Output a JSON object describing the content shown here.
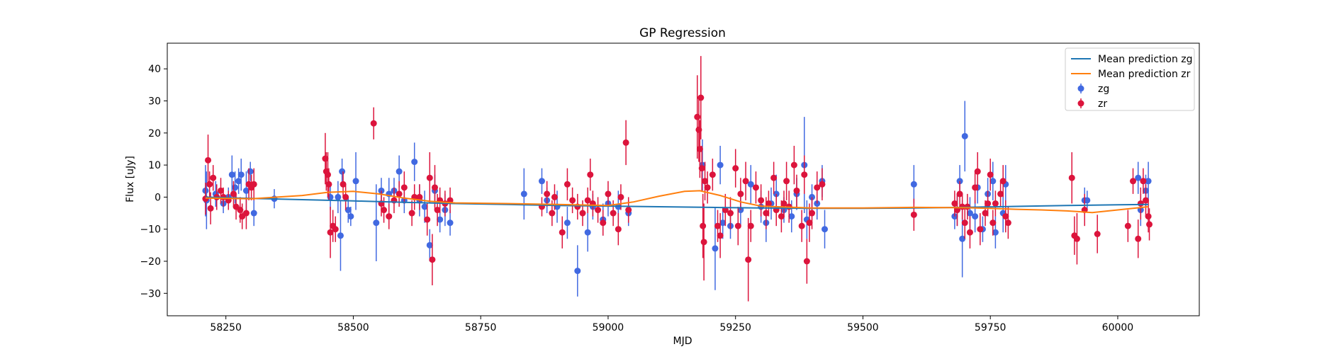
{
  "chart_data": {
    "type": "scatter",
    "title": "GP Regression",
    "xlabel": "MJD",
    "ylabel": "Flux [uJy]",
    "xlim": [
      58135,
      60160
    ],
    "ylim": [
      -37,
      48
    ],
    "xticks": [
      58250,
      58500,
      58750,
      59000,
      59250,
      59500,
      59750,
      60000
    ],
    "yticks": [
      -30,
      -20,
      -10,
      0,
      10,
      20,
      30,
      40
    ],
    "grid": false,
    "legend_position": "top-right",
    "colors": {
      "zg": "#4169e1",
      "zr": "#dc143c",
      "mean_zg": "#1f77b4",
      "mean_zr": "#ff7f0e"
    },
    "lines": [
      {
        "name": "Mean prediction zg",
        "x": [
          58210,
          58300,
          58400,
          58500,
          58600,
          58700,
          58800,
          58900,
          59000,
          59100,
          59200,
          59300,
          59400,
          59500,
          59600,
          59700,
          59800,
          59900,
          60000,
          60060
        ],
        "y": [
          0.0,
          -0.4,
          -0.8,
          -1.2,
          -1.6,
          -2.0,
          -2.3,
          -2.6,
          -2.8,
          -3.0,
          -3.2,
          -3.4,
          -3.5,
          -3.5,
          -3.4,
          -3.2,
          -2.9,
          -2.6,
          -2.4,
          -2.3
        ]
      },
      {
        "name": "Mean prediction zr",
        "x": [
          58210,
          58300,
          58400,
          58450,
          58500,
          58550,
          58600,
          58650,
          58700,
          58800,
          58900,
          59000,
          59050,
          59100,
          59150,
          59180,
          59220,
          59260,
          59300,
          59400,
          59500,
          59600,
          59700,
          59750,
          59800,
          59850,
          59900,
          59950,
          60000,
          60060
        ],
        "y": [
          -0.3,
          -0.5,
          0.5,
          1.5,
          1.8,
          1.0,
          -0.3,
          -1.3,
          -1.8,
          -2.0,
          -2.3,
          -2.6,
          -1.5,
          0.3,
          1.8,
          2.0,
          0.5,
          -1.5,
          -2.8,
          -3.4,
          -3.4,
          -3.2,
          -3.3,
          -3.5,
          -3.8,
          -4.0,
          -4.3,
          -4.8,
          -4.0,
          -3.0
        ]
      }
    ],
    "series": [
      {
        "name": "zg",
        "points": [
          [
            58210,
            2,
            8
          ],
          [
            58212,
            -1,
            9
          ],
          [
            58230,
            1,
            4
          ],
          [
            58245,
            -2,
            3
          ],
          [
            58255,
            0,
            3
          ],
          [
            58262,
            7,
            6
          ],
          [
            58268,
            3,
            5
          ],
          [
            58275,
            5,
            4
          ],
          [
            58280,
            7,
            5
          ],
          [
            58290,
            2,
            6
          ],
          [
            58298,
            8,
            3
          ],
          [
            58305,
            -5,
            4
          ],
          [
            58345,
            -0.5,
            3
          ],
          [
            58455,
            0,
            4
          ],
          [
            58470,
            0,
            5
          ],
          [
            58475,
            -12,
            11
          ],
          [
            58478,
            8,
            4
          ],
          [
            58490,
            -4,
            4
          ],
          [
            58495,
            -6,
            3
          ],
          [
            58505,
            5,
            9
          ],
          [
            58545,
            -8,
            12
          ],
          [
            58555,
            2,
            4
          ],
          [
            58570,
            1,
            5
          ],
          [
            58580,
            2,
            4
          ],
          [
            58590,
            8,
            5
          ],
          [
            58600,
            -1,
            4
          ],
          [
            58620,
            11,
            6
          ],
          [
            58630,
            -1,
            5
          ],
          [
            58640,
            -3,
            5
          ],
          [
            58650,
            -15,
            5
          ],
          [
            58660,
            2,
            5
          ],
          [
            58670,
            -7,
            4
          ],
          [
            58680,
            -4,
            5
          ],
          [
            58690,
            -8,
            4
          ],
          [
            58835,
            1,
            8
          ],
          [
            58870,
            5,
            4
          ],
          [
            58880,
            -1,
            4
          ],
          [
            58900,
            -3,
            5
          ],
          [
            58920,
            -8,
            5
          ],
          [
            58940,
            -23,
            8
          ],
          [
            58960,
            -11,
            6
          ],
          [
            58970,
            -3,
            4
          ],
          [
            58990,
            -7,
            5
          ],
          [
            59000,
            -2,
            4
          ],
          [
            59020,
            -3,
            5
          ],
          [
            59040,
            -5,
            4
          ],
          [
            59185,
            10,
            8
          ],
          [
            59210,
            -16,
            13
          ],
          [
            59220,
            10,
            6
          ],
          [
            59225,
            -8,
            5
          ],
          [
            59240,
            -9,
            4
          ],
          [
            59260,
            -4,
            5
          ],
          [
            59280,
            4,
            6
          ],
          [
            59300,
            -3,
            5
          ],
          [
            59310,
            -8,
            6
          ],
          [
            59320,
            -2,
            5
          ],
          [
            59330,
            1,
            6
          ],
          [
            59345,
            -4,
            4
          ],
          [
            59360,
            -6,
            5
          ],
          [
            59370,
            1,
            5
          ],
          [
            59385,
            10,
            15
          ],
          [
            59390,
            -7,
            6
          ],
          [
            59400,
            0,
            4
          ],
          [
            59410,
            -2,
            5
          ],
          [
            59420,
            5,
            5
          ],
          [
            59425,
            -10,
            6
          ],
          [
            59600,
            4,
            6
          ],
          [
            59680,
            -6,
            4
          ],
          [
            59685,
            -4,
            5
          ],
          [
            59690,
            5,
            5
          ],
          [
            59695,
            -13,
            12
          ],
          [
            59700,
            19,
            11
          ],
          [
            59710,
            -5,
            5
          ],
          [
            59720,
            -6,
            5
          ],
          [
            59725,
            3,
            5
          ],
          [
            59735,
            -10,
            4
          ],
          [
            59745,
            1,
            5
          ],
          [
            59755,
            5,
            6
          ],
          [
            59760,
            -11,
            5
          ],
          [
            59775,
            -5,
            6
          ],
          [
            59780,
            4,
            6
          ],
          [
            59935,
            -1,
            4
          ],
          [
            59940,
            -1,
            3
          ],
          [
            60040,
            6,
            5
          ],
          [
            60045,
            -4,
            5
          ],
          [
            60055,
            2,
            5
          ],
          [
            60060,
            5,
            6
          ]
        ]
      },
      {
        "name": "zr",
        "points": [
          [
            58210,
            -0.5,
            5
          ],
          [
            58215,
            11.5,
            8
          ],
          [
            58218,
            4,
            4
          ],
          [
            58220,
            -3.5,
            5
          ],
          [
            58225,
            6,
            4
          ],
          [
            58232,
            0,
            4
          ],
          [
            58240,
            2,
            4
          ],
          [
            58245,
            0,
            3
          ],
          [
            58255,
            -1,
            3
          ],
          [
            58265,
            1,
            4
          ],
          [
            58270,
            -3,
            4
          ],
          [
            58278,
            -4,
            4
          ],
          [
            58282,
            -6,
            4
          ],
          [
            58290,
            -5,
            5
          ],
          [
            58295,
            4,
            5
          ],
          [
            58300,
            3,
            4
          ],
          [
            58305,
            4,
            5
          ],
          [
            58445,
            12,
            8
          ],
          [
            58447,
            8,
            6
          ],
          [
            58450,
            7,
            7
          ],
          [
            58452,
            4,
            5
          ],
          [
            58455,
            -11,
            8
          ],
          [
            58460,
            -9,
            5
          ],
          [
            58465,
            -10,
            4
          ],
          [
            58480,
            4,
            4
          ],
          [
            58485,
            0,
            4
          ],
          [
            58540,
            23,
            5
          ],
          [
            58555,
            -2,
            4
          ],
          [
            58560,
            -4,
            4
          ],
          [
            58570,
            -6,
            4
          ],
          [
            58580,
            -1,
            4
          ],
          [
            58590,
            1,
            4
          ],
          [
            58600,
            3,
            5
          ],
          [
            58615,
            -5,
            4
          ],
          [
            58620,
            0,
            4
          ],
          [
            58630,
            0,
            4
          ],
          [
            58645,
            -7,
            5
          ],
          [
            58650,
            6,
            8
          ],
          [
            58655,
            -19.5,
            8
          ],
          [
            58660,
            3,
            7
          ],
          [
            58665,
            -4,
            5
          ],
          [
            58670,
            -1,
            4
          ],
          [
            58680,
            -2,
            4
          ],
          [
            58690,
            -1,
            4
          ],
          [
            58870,
            -3,
            3
          ],
          [
            58880,
            1,
            4
          ],
          [
            58890,
            -5,
            4
          ],
          [
            58895,
            0,
            4
          ],
          [
            58910,
            -11,
            5
          ],
          [
            58920,
            4,
            5
          ],
          [
            58930,
            -1,
            4
          ],
          [
            58940,
            -3,
            4
          ],
          [
            58950,
            -5,
            4
          ],
          [
            58960,
            -1,
            4
          ],
          [
            58965,
            7,
            5
          ],
          [
            58970,
            -2,
            4
          ],
          [
            58980,
            -4,
            4
          ],
          [
            58990,
            -8,
            4
          ],
          [
            59000,
            1,
            4
          ],
          [
            59010,
            -5,
            4
          ],
          [
            59020,
            -10,
            5
          ],
          [
            59025,
            0,
            4
          ],
          [
            59035,
            17,
            7
          ],
          [
            59040,
            -4,
            4
          ],
          [
            59175,
            25,
            13
          ],
          [
            59178,
            21,
            10
          ],
          [
            59180,
            15,
            9
          ],
          [
            59182,
            31,
            13
          ],
          [
            59184,
            9,
            7
          ],
          [
            59186,
            -9,
            10
          ],
          [
            59188,
            -14,
            12
          ],
          [
            59190,
            5,
            6
          ],
          [
            59195,
            3,
            5
          ],
          [
            59205,
            7,
            5
          ],
          [
            59215,
            -9,
            5
          ],
          [
            59220,
            -12,
            7
          ],
          [
            59230,
            -4,
            5
          ],
          [
            59240,
            -5,
            5
          ],
          [
            59250,
            9,
            6
          ],
          [
            59255,
            -9,
            6
          ],
          [
            59260,
            1,
            5
          ],
          [
            59270,
            5,
            6
          ],
          [
            59275,
            -19.5,
            13
          ],
          [
            59280,
            -9,
            5
          ],
          [
            59290,
            3,
            5
          ],
          [
            59300,
            -1,
            5
          ],
          [
            59310,
            -5,
            5
          ],
          [
            59315,
            -2,
            4
          ],
          [
            59325,
            6,
            5
          ],
          [
            59330,
            -4,
            5
          ],
          [
            59340,
            -6,
            5
          ],
          [
            59345,
            -2,
            4
          ],
          [
            59350,
            5,
            6
          ],
          [
            59355,
            -3,
            5
          ],
          [
            59365,
            10,
            6
          ],
          [
            59370,
            2,
            5
          ],
          [
            59380,
            -9,
            5
          ],
          [
            59385,
            7,
            6
          ],
          [
            59390,
            -20,
            7
          ],
          [
            59395,
            -8,
            6
          ],
          [
            59400,
            -5,
            5
          ],
          [
            59410,
            3,
            5
          ],
          [
            59420,
            4,
            5
          ],
          [
            59600,
            -5.5,
            5
          ],
          [
            59680,
            -2,
            4
          ],
          [
            59685,
            -4,
            5
          ],
          [
            59690,
            1,
            4
          ],
          [
            59695,
            -3,
            4
          ],
          [
            59700,
            -8,
            5
          ],
          [
            59705,
            -3,
            4
          ],
          [
            59710,
            -11,
            5
          ],
          [
            59720,
            3,
            5
          ],
          [
            59725,
            8,
            6
          ],
          [
            59730,
            -10,
            5
          ],
          [
            59740,
            -5,
            4
          ],
          [
            59745,
            -2,
            4
          ],
          [
            59750,
            7,
            5
          ],
          [
            59755,
            -8,
            4
          ],
          [
            59760,
            -2,
            4
          ],
          [
            59770,
            1,
            4
          ],
          [
            59775,
            5,
            5
          ],
          [
            59780,
            -6,
            5
          ],
          [
            59785,
            -8,
            5
          ],
          [
            59910,
            6,
            8
          ],
          [
            59915,
            -12,
            6
          ],
          [
            59920,
            -13,
            8
          ],
          [
            59935,
            -4,
            5
          ],
          [
            59960,
            -11.5,
            6
          ],
          [
            60020,
            -9,
            5
          ],
          [
            60030,
            5,
            4
          ],
          [
            60040,
            -13,
            6
          ],
          [
            60045,
            -2,
            5
          ],
          [
            60050,
            5,
            4
          ],
          [
            60055,
            -1,
            5
          ],
          [
            60060,
            -6,
            5
          ],
          [
            60062,
            -8.5,
            5
          ]
        ]
      }
    ],
    "legend": [
      "Mean prediction zg",
      "Mean prediction zr",
      "zg",
      "zr"
    ]
  }
}
